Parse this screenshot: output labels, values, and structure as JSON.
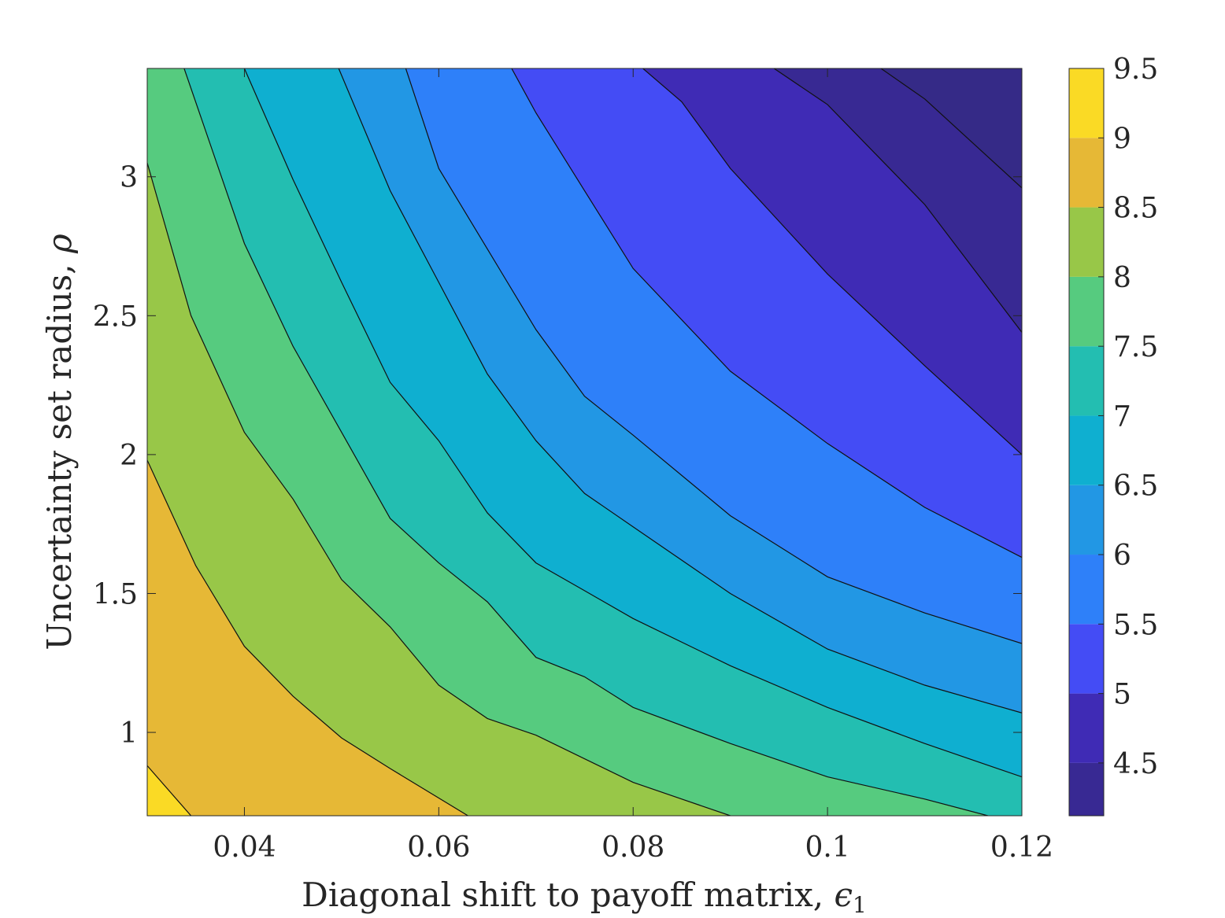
{
  "chart_data": {
    "type": "contour",
    "title": "",
    "xlabel": "Diagonal shift to payoff matrix, ",
    "xlabel_symbol": "ϵ",
    "xlabel_subscript": "1",
    "ylabel": "Uncertainty set radius, ",
    "ylabel_symbol": "ρ",
    "xlim": [
      0.03,
      0.12
    ],
    "ylim": [
      0.7,
      3.39
    ],
    "x_ticks": [
      0.04,
      0.06,
      0.08,
      0.1,
      0.12
    ],
    "x_tick_labels": [
      "0.04",
      "0.06",
      "0.08",
      "0.1",
      "0.12"
    ],
    "y_ticks": [
      1,
      1.5,
      2,
      2.5,
      3
    ],
    "y_tick_labels": [
      "1",
      "1.5",
      "2",
      "2.5",
      "3"
    ],
    "colorbar": {
      "range": [
        4.12,
        9.5
      ],
      "ticks": [
        4.5,
        5,
        5.5,
        6,
        6.5,
        7,
        7.5,
        8,
        8.5,
        9,
        9.5
      ],
      "tick_labels": [
        "4.5",
        "5",
        "5.5",
        "6",
        "6.5",
        "7",
        "7.5",
        "8",
        "8.5",
        "9",
        "9.5"
      ],
      "colormap": "parula"
    },
    "contour_levels": [
      4.5,
      5,
      5.5,
      6,
      6.5,
      7,
      7.5,
      8,
      8.5,
      9
    ],
    "contour_lines": [
      {
        "level": 9.0,
        "points": [
          [
            0.03,
            0.88
          ],
          [
            0.0345,
            0.7
          ]
        ]
      },
      {
        "level": 8.5,
        "points": [
          [
            0.03,
            1.98
          ],
          [
            0.035,
            1.6
          ],
          [
            0.04,
            1.31
          ],
          [
            0.045,
            1.13
          ],
          [
            0.05,
            0.98
          ],
          [
            0.055,
            0.87
          ],
          [
            0.063,
            0.7
          ]
        ]
      },
      {
        "level": 8.0,
        "points": [
          [
            0.03,
            3.05
          ],
          [
            0.0345,
            2.5
          ],
          [
            0.04,
            2.08
          ],
          [
            0.045,
            1.84
          ],
          [
            0.05,
            1.55
          ],
          [
            0.055,
            1.38
          ],
          [
            0.06,
            1.17
          ],
          [
            0.065,
            1.05
          ],
          [
            0.07,
            0.99
          ],
          [
            0.08,
            0.82
          ],
          [
            0.09,
            0.7
          ]
        ]
      },
      {
        "level": 7.5,
        "points": [
          [
            0.0338,
            3.39
          ],
          [
            0.04,
            2.76
          ],
          [
            0.045,
            2.39
          ],
          [
            0.05,
            2.08
          ],
          [
            0.055,
            1.77
          ],
          [
            0.06,
            1.61
          ],
          [
            0.065,
            1.47
          ],
          [
            0.07,
            1.27
          ],
          [
            0.075,
            1.2
          ],
          [
            0.08,
            1.09
          ],
          [
            0.09,
            0.96
          ],
          [
            0.1,
            0.84
          ],
          [
            0.11,
            0.76
          ],
          [
            0.1165,
            0.7
          ]
        ]
      },
      {
        "level": 7.0,
        "points": [
          [
            0.04,
            3.39
          ],
          [
            0.045,
            2.99
          ],
          [
            0.05,
            2.62
          ],
          [
            0.055,
            2.26
          ],
          [
            0.06,
            2.05
          ],
          [
            0.065,
            1.79
          ],
          [
            0.07,
            1.61
          ],
          [
            0.075,
            1.51
          ],
          [
            0.08,
            1.41
          ],
          [
            0.09,
            1.24
          ],
          [
            0.1,
            1.09
          ],
          [
            0.11,
            0.96
          ],
          [
            0.12,
            0.84
          ]
        ]
      },
      {
        "level": 6.5,
        "points": [
          [
            0.0497,
            3.39
          ],
          [
            0.055,
            2.95
          ],
          [
            0.06,
            2.62
          ],
          [
            0.065,
            2.29
          ],
          [
            0.07,
            2.05
          ],
          [
            0.075,
            1.86
          ],
          [
            0.08,
            1.74
          ],
          [
            0.09,
            1.5
          ],
          [
            0.1,
            1.3
          ],
          [
            0.11,
            1.17
          ],
          [
            0.12,
            1.07
          ]
        ]
      },
      {
        "level": 6.0,
        "points": [
          [
            0.0566,
            3.39
          ],
          [
            0.06,
            3.03
          ],
          [
            0.065,
            2.74
          ],
          [
            0.07,
            2.45
          ],
          [
            0.075,
            2.21
          ],
          [
            0.08,
            2.07
          ],
          [
            0.09,
            1.78
          ],
          [
            0.1,
            1.56
          ],
          [
            0.11,
            1.43
          ],
          [
            0.12,
            1.32
          ]
        ]
      },
      {
        "level": 5.5,
        "points": [
          [
            0.0675,
            3.39
          ],
          [
            0.07,
            3.23
          ],
          [
            0.075,
            2.95
          ],
          [
            0.08,
            2.67
          ],
          [
            0.09,
            2.3
          ],
          [
            0.1,
            2.04
          ],
          [
            0.11,
            1.81
          ],
          [
            0.12,
            1.63
          ]
        ]
      },
      {
        "level": 5.0,
        "points": [
          [
            0.081,
            3.39
          ],
          [
            0.085,
            3.27
          ],
          [
            0.09,
            3.03
          ],
          [
            0.1,
            2.65
          ],
          [
            0.11,
            2.32
          ],
          [
            0.12,
            2.0
          ]
        ]
      },
      {
        "level": 4.5,
        "points": [
          [
            0.0945,
            3.39
          ],
          [
            0.1,
            3.26
          ],
          [
            0.11,
            2.9
          ],
          [
            0.12,
            2.44
          ]
        ]
      },
      {
        "level": 4.12,
        "points": [
          [
            0.1055,
            3.39
          ],
          [
            0.11,
            3.28
          ],
          [
            0.12,
            2.96
          ]
        ]
      }
    ]
  }
}
